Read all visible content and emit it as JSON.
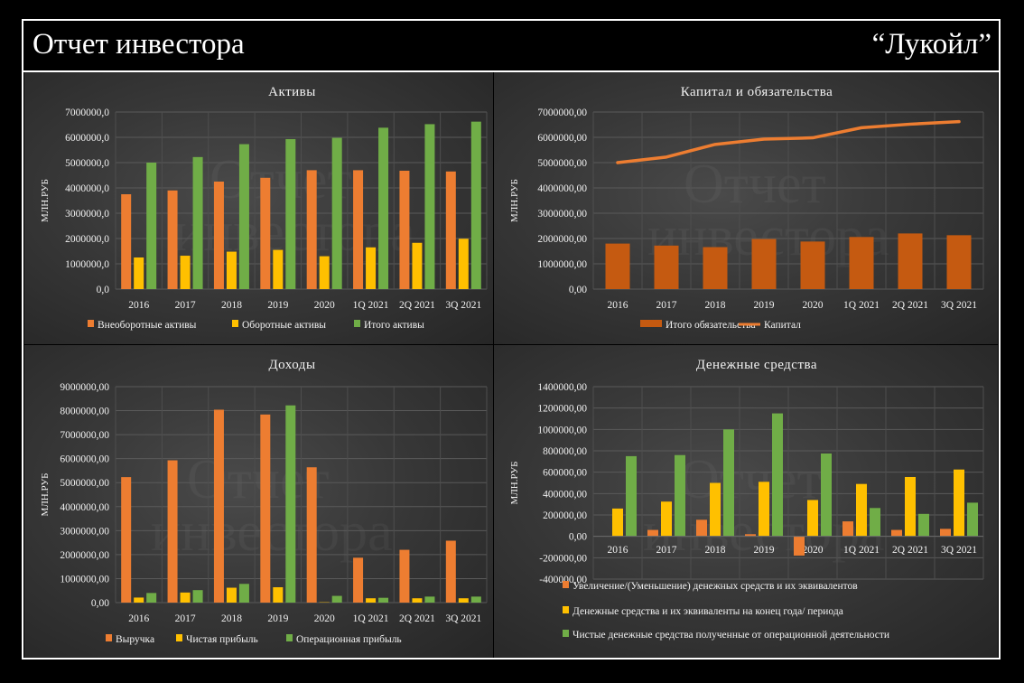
{
  "header": {
    "title": "Отчет инвестора",
    "company": "“Лукойл”"
  },
  "watermark": {
    "line1": "Отчет",
    "line2": "инвестора"
  },
  "colors": {
    "orange": "#ED7D31",
    "yellow": "#FFC000",
    "green": "#70AD47",
    "brown": "#C55A11",
    "line_orange": "#ED7D31"
  },
  "chart_data": [
    {
      "id": "assets",
      "type": "bar",
      "title": "Активы",
      "ylabel": "МЛН.РУБ",
      "categories": [
        "2016",
        "2017",
        "2018",
        "2019",
        "2020",
        "1Q 2021",
        "2Q 2021",
        "3Q 2021"
      ],
      "ylim": [
        0,
        7000000
      ],
      "yticks": [
        "0,0",
        "1000000,0",
        "2000000,0",
        "3000000,0",
        "4000000,0",
        "5000000,0",
        "6000000,0",
        "7000000,0"
      ],
      "series": [
        {
          "name": "Внеоборотные активы",
          "color": "#ED7D31",
          "values": [
            3750000,
            3900000,
            4250000,
            4400000,
            4700000,
            4700000,
            4680000,
            4650000
          ]
        },
        {
          "name": "Оборотные активы",
          "color": "#FFC000",
          "values": [
            1250000,
            1320000,
            1480000,
            1550000,
            1300000,
            1650000,
            1830000,
            1990000
          ]
        },
        {
          "name": "Итого активы",
          "color": "#70AD47",
          "values": [
            5000000,
            5220000,
            5730000,
            5930000,
            5980000,
            6380000,
            6520000,
            6620000
          ]
        }
      ]
    },
    {
      "id": "capital",
      "type": "bar+line",
      "title": "Капитал и обязательства",
      "ylabel": "МЛН.РУБ",
      "categories": [
        "2016",
        "2017",
        "2018",
        "2019",
        "2020",
        "1Q 2021",
        "2Q 2021",
        "3Q 2021"
      ],
      "ylim": [
        0,
        7000000
      ],
      "yticks": [
        "0,00",
        "1000000,00",
        "2000000,00",
        "3000000,00",
        "4000000,00",
        "5000000,00",
        "6000000,00",
        "7000000,00"
      ],
      "series": [
        {
          "name": "Итого обязательства",
          "color": "#C55A11",
          "kind": "bar",
          "values": [
            1800000,
            1720000,
            1660000,
            1980000,
            1880000,
            2060000,
            2200000,
            2130000
          ]
        },
        {
          "name": "Капитал",
          "color": "#ED7D31",
          "kind": "line",
          "values": [
            5000000,
            5220000,
            5720000,
            5930000,
            5980000,
            6380000,
            6520000,
            6620000
          ]
        }
      ]
    },
    {
      "id": "income",
      "type": "bar",
      "title": "Доходы",
      "ylabel": "МЛН.РУБ",
      "categories": [
        "2016",
        "2017",
        "2018",
        "2019",
        "2020",
        "1Q 2021",
        "2Q 2021",
        "3Q 2021"
      ],
      "ylim": [
        0,
        9000000
      ],
      "yticks": [
        "0,00",
        "1000000,00",
        "2000000,00",
        "3000000,00",
        "4000000,00",
        "5000000,00",
        "6000000,00",
        "7000000,00",
        "8000000,00",
        "9000000,00"
      ],
      "series": [
        {
          "name": "Выручка",
          "color": "#ED7D31",
          "values": [
            5230000,
            5930000,
            8040000,
            7840000,
            5640000,
            1870000,
            2200000,
            2580000
          ]
        },
        {
          "name": "Чистая прибыль",
          "color": "#FFC000",
          "values": [
            210000,
            420000,
            620000,
            640000,
            15000,
            180000,
            180000,
            180000
          ]
        },
        {
          "name": "Операционная прибыль",
          "color": "#70AD47",
          "values": [
            400000,
            520000,
            780000,
            8220000,
            280000,
            200000,
            250000,
            250000
          ]
        }
      ]
    },
    {
      "id": "cash",
      "type": "bar",
      "title": "Денежные средства",
      "ylabel": "МЛН.РУБ",
      "categories": [
        "2016",
        "2017",
        "2018",
        "2019",
        "2020",
        "1Q 2021",
        "2Q 2021",
        "3Q 2021"
      ],
      "ylim": [
        -400000,
        1400000
      ],
      "yticks": [
        "-400000,00",
        "-200000,00",
        "0,00",
        "200000,00",
        "400000,00",
        "600000,00",
        "800000,00",
        "1000000,00",
        "1200000,00",
        "1400000,00"
      ],
      "series": [
        {
          "name": "Увеличение/(Уменьшение) денежных средств и их эквивалентов",
          "color": "#ED7D31",
          "values": [
            0,
            60000,
            155000,
            20000,
            -180000,
            140000,
            60000,
            70000
          ]
        },
        {
          "name": "Денежные средства и их эквиваленты на конец года/ периода",
          "color": "#FFC000",
          "values": [
            260000,
            325000,
            500000,
            510000,
            340000,
            490000,
            555000,
            625000
          ]
        },
        {
          "name": "Чистые денежные средства полученные от операционной деятельности",
          "color": "#70AD47",
          "values": [
            750000,
            760000,
            1000000,
            1150000,
            775000,
            265000,
            210000,
            315000
          ]
        }
      ]
    }
  ]
}
